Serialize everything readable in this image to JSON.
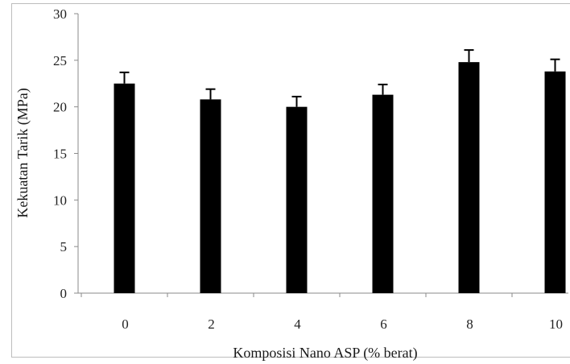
{
  "chart_data": {
    "type": "bar",
    "categories": [
      "0",
      "2",
      "4",
      "6",
      "8",
      "10"
    ],
    "values": [
      22.5,
      20.8,
      20.0,
      21.3,
      24.8,
      23.8
    ],
    "error": [
      1.2,
      1.1,
      1.1,
      1.1,
      1.3,
      1.3
    ],
    "xlabel": "Komposisi Nano ASP (% berat)",
    "ylabel": "Kekuatan Tarik (MPa)",
    "ylim": [
      0,
      30
    ],
    "yticks": [
      "0",
      "5",
      "10",
      "15",
      "20",
      "25",
      "30"
    ],
    "grid": false,
    "legend": "none",
    "colors": {
      "bar": "#000000",
      "axis": "#8a8a8a",
      "frame": "#bdbdbd"
    }
  }
}
